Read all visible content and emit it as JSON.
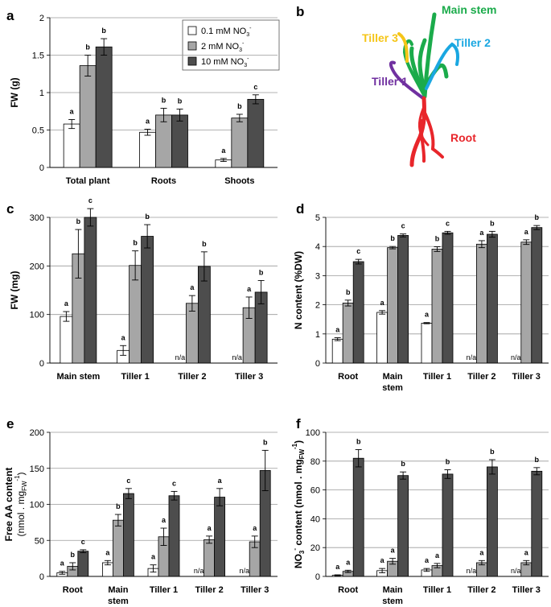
{
  "legend": {
    "low": "0.1 mM NO",
    "low_sup": "3",
    "low_tail": "-",
    "mid": "2 mM NO",
    "mid_sup": "3",
    "mid_tail": "-",
    "high": "10 mM NO",
    "high_sup": "3",
    "high_tail": "-"
  },
  "colors": {
    "low": "#ffffff",
    "mid": "#a6a6a6",
    "high": "#4d4d4d",
    "grid": "#9a9a9a"
  },
  "plant": {
    "panel_letter": "b",
    "main_stem": "Main stem",
    "tiller1": "Tiller 1",
    "tiller2": "Tiller 2",
    "tiller3": "Tiller 3",
    "root": "Root",
    "colors": {
      "main": "#1bab4b",
      "tiller1": "#7030a0",
      "tiller2": "#1aa7e1",
      "tiller3": "#f5c518",
      "root": "#e8262b"
    }
  },
  "chart_data": [
    {
      "panel": "a",
      "type": "bar",
      "ylabel": "FW (g)",
      "ylim": [
        0,
        2
      ],
      "yticks": [
        0,
        0.5,
        1,
        1.5,
        2
      ],
      "categories": [
        "Total plant",
        "Roots",
        "Shoots"
      ],
      "series": [
        {
          "name": "0.1 mM NO3-",
          "values": [
            0.58,
            0.47,
            0.1
          ],
          "errors": [
            0.06,
            0.04,
            0.02
          ],
          "letters": [
            "a",
            "a",
            "a"
          ]
        },
        {
          "name": "2 mM NO3-",
          "values": [
            1.36,
            0.7,
            0.66
          ],
          "errors": [
            0.14,
            0.09,
            0.05
          ],
          "letters": [
            "b",
            "b",
            "b"
          ]
        },
        {
          "name": "10 mM NO3-",
          "values": [
            1.61,
            0.7,
            0.91
          ],
          "errors": [
            0.11,
            0.08,
            0.06
          ],
          "letters": [
            "b",
            "b",
            "c"
          ]
        }
      ]
    },
    {
      "panel": "c",
      "type": "bar",
      "ylabel": "FW (mg)",
      "ylim": [
        0,
        300
      ],
      "yticks": [
        0,
        100,
        200,
        300
      ],
      "categories": [
        "Main stem",
        "Tiller 1",
        "Tiller 2",
        "Tiller 3"
      ],
      "series": [
        {
          "name": "0.1 mM NO3-",
          "values": [
            96,
            26,
            null,
            null
          ],
          "errors": [
            10,
            10,
            null,
            null
          ],
          "letters": [
            "a",
            "a",
            "n/a",
            "n/a"
          ]
        },
        {
          "name": "2 mM NO3-",
          "values": [
            225,
            201,
            123,
            114
          ],
          "errors": [
            50,
            30,
            16,
            22
          ],
          "letters": [
            "b",
            "b",
            "a",
            "a"
          ]
        },
        {
          "name": "10 mM NO3-",
          "values": [
            300,
            261,
            199,
            146
          ],
          "errors": [
            18,
            24,
            30,
            24
          ],
          "letters": [
            "c",
            "b",
            "b",
            "b"
          ]
        }
      ]
    },
    {
      "panel": "d",
      "type": "bar",
      "ylabel": "N content (%DW)",
      "ylim": [
        0,
        5
      ],
      "yticks": [
        0,
        1,
        2,
        3,
        4,
        5
      ],
      "categories": [
        "Root",
        "Main stem",
        "Tiller 1",
        "Tiller 2",
        "Tiller 3"
      ],
      "series": [
        {
          "name": "0.1 mM NO3-",
          "values": [
            0.82,
            1.74,
            1.37,
            null,
            null
          ],
          "errors": [
            0.05,
            0.06,
            0.02,
            null,
            null
          ],
          "letters": [
            "a",
            "a",
            "a",
            "n/a",
            "n/a"
          ]
        },
        {
          "name": "2 mM NO3-",
          "values": [
            2.06,
            3.96,
            3.91,
            4.08,
            4.15
          ],
          "errors": [
            0.1,
            0.04,
            0.08,
            0.12,
            0.08
          ],
          "letters": [
            "b",
            "b",
            "b",
            "a",
            "a"
          ]
        },
        {
          "name": "10 mM NO3-",
          "values": [
            3.48,
            4.38,
            4.47,
            4.42,
            4.65
          ],
          "errors": [
            0.08,
            0.05,
            0.05,
            0.1,
            0.07
          ],
          "letters": [
            "c",
            "c",
            "c",
            "b",
            "b"
          ]
        }
      ]
    },
    {
      "panel": "e",
      "type": "bar",
      "ylabel": "Free AA content",
      "ylabel2": "(nmol . mg",
      "ylabel2_sub": "FW",
      "ylabel2_sup": "-1",
      "ylabel2_end": ")",
      "ylim": [
        0,
        200
      ],
      "yticks": [
        0,
        50,
        100,
        150,
        200
      ],
      "categories": [
        "Root",
        "Main stem",
        "Tiller 1",
        "Tiller 2",
        "Tiller 3"
      ],
      "series": [
        {
          "name": "0.1 mM NO3-",
          "values": [
            5,
            19,
            11,
            null,
            null
          ],
          "errors": [
            2,
            3,
            5,
            null,
            null
          ],
          "letters": [
            "a",
            "a",
            "a",
            "n/a",
            "n/a"
          ]
        },
        {
          "name": "2 mM NO3-",
          "values": [
            14,
            78,
            55,
            51,
            48
          ],
          "errors": [
            5,
            8,
            12,
            5,
            8
          ],
          "letters": [
            "b",
            "b",
            "a",
            "a",
            "a"
          ]
        },
        {
          "name": "10 mM NO3-",
          "values": [
            35,
            115,
            112,
            110,
            147
          ],
          "errors": [
            2,
            7,
            6,
            12,
            28
          ],
          "letters": [
            "c",
            "c",
            "c",
            "a",
            "b"
          ]
        }
      ]
    },
    {
      "panel": "f",
      "type": "bar",
      "ylabel": "NO",
      "ylabel_sub": "3",
      "ylabel_sup": "-",
      "ylabel_rest": " content (nmol . mg",
      "ylabel_sub2": "FW",
      "ylabel_sup2": "-1",
      "ylabel_end": ")",
      "ylim": [
        0,
        100
      ],
      "yticks": [
        0,
        20,
        40,
        60,
        80,
        100
      ],
      "categories": [
        "Root",
        "Main stem",
        "Tiller 1",
        "Tiller 2",
        "Tiller 3"
      ],
      "series": [
        {
          "name": "0.1 mM NO3-",
          "values": [
            0.8,
            4,
            4.5,
            null,
            null
          ],
          "errors": [
            0.3,
            1.5,
            1,
            null,
            null
          ],
          "letters": [
            "a",
            "a",
            "a",
            "n/a",
            "n/a"
          ]
        },
        {
          "name": "2 mM NO3-",
          "values": [
            3.5,
            10.5,
            7.5,
            9.5,
            9.5
          ],
          "errors": [
            0.8,
            2,
            1.5,
            1.5,
            1.5
          ],
          "letters": [
            "a",
            "a",
            "a",
            "a",
            "a"
          ]
        },
        {
          "name": "10 mM NO3-",
          "values": [
            82,
            70,
            71,
            76,
            73
          ],
          "errors": [
            6,
            2.5,
            3,
            5,
            2.5
          ],
          "letters": [
            "b",
            "b",
            "b",
            "b",
            "b"
          ]
        }
      ]
    }
  ]
}
